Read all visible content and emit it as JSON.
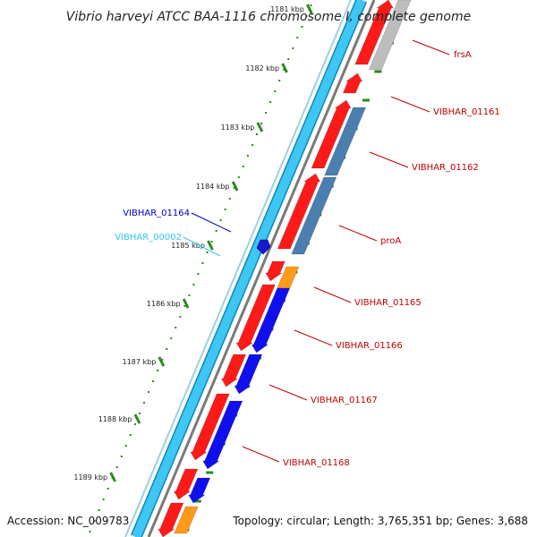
{
  "title": "Vibrio harveyi ATCC BAA-1116 chromosome I, complete genome",
  "footer": {
    "accession": "Accession: NC_009783",
    "summary": "Topology: circular; Length: 3,765,351 bp; Genes: 3,688"
  },
  "scale_labels": [
    "1181 kbp",
    "1182 kbp",
    "1183 kbp",
    "1184 kbp",
    "1185 kbp",
    "1186 kbp",
    "1187 kbp",
    "1188 kbp",
    "1189 kbp"
  ],
  "gene_labels": {
    "frsA": "frsA",
    "v01161": "VIBHAR_01161",
    "v01162": "VIBHAR_01162",
    "proA": "proA",
    "v01165": "VIBHAR_01165",
    "v01166": "VIBHAR_01166",
    "v01167": "VIBHAR_01167",
    "v01168": "VIBHAR_01168",
    "v01164": "VIBHAR_01164",
    "v00002": "VIBHAR_00002"
  },
  "colors": {
    "cds": "#ff1a1a",
    "blue_feature": "#1010ee",
    "steel_feature": "#4a7fb0",
    "orange_feature": "#ff9a1a",
    "gray_feature": "#bdbdbd",
    "backbone": "#33c5f5",
    "forward_label": "#c00000",
    "reverse_label": "#0000cc",
    "cyan_label": "#33c5f5",
    "tick_green": "#2a8a1a"
  }
}
